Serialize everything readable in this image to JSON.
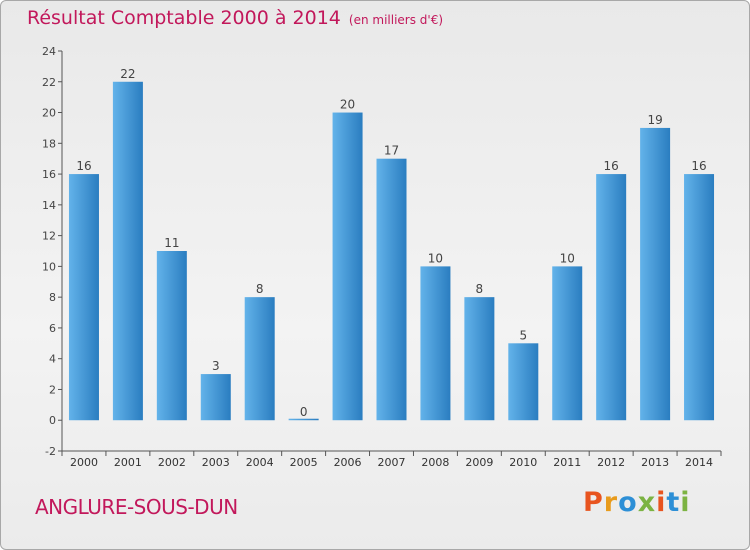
{
  "page": {
    "title": "Résultat Comptable 2000 à 2014",
    "unit": "(en milliers d'€)",
    "commune": "ANGLURE-SOUS-DUN",
    "brand": "Proxiti"
  },
  "colors": {
    "title": "#c2185b",
    "bar_light": "#63b3ea",
    "bar_dark": "#1f74b6",
    "brand_letters": [
      "#e8541f",
      "#e89b1c",
      "#2d8fd6",
      "#7cb342",
      "#e8541f",
      "#2d8fd6",
      "#7cb342"
    ]
  },
  "chart_data": {
    "type": "bar",
    "title": "Résultat Comptable 2000 à 2014",
    "subtitle": "(en milliers d'€)",
    "xlabel": "",
    "ylabel": "",
    "ylim": [
      -2,
      24
    ],
    "yticks": [
      -2,
      0,
      2,
      4,
      6,
      8,
      10,
      12,
      14,
      16,
      18,
      20,
      22,
      24
    ],
    "grid": false,
    "categories": [
      "2000",
      "2001",
      "2002",
      "2003",
      "2004",
      "2005",
      "2006",
      "2007",
      "2008",
      "2009",
      "2010",
      "2011",
      "2012",
      "2013",
      "2014"
    ],
    "values": [
      16,
      22,
      11,
      3,
      8,
      0,
      20,
      17,
      10,
      8,
      5,
      10,
      16,
      19,
      16
    ],
    "data_labels": [
      "16",
      "22",
      "11",
      "3",
      "8",
      "0",
      "20",
      "17",
      "10",
      "8",
      "5",
      "10",
      "16",
      "19",
      "16"
    ]
  }
}
